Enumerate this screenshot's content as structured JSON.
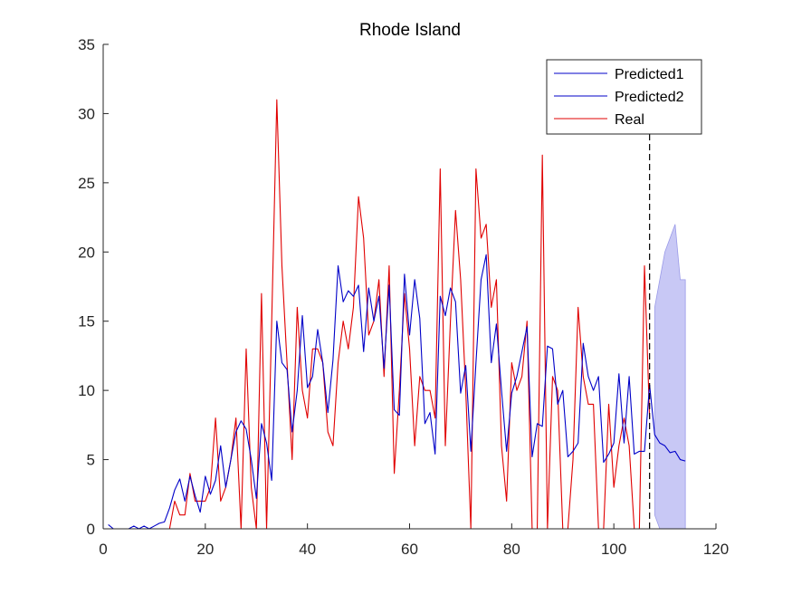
{
  "chart_data": {
    "type": "line",
    "title": "Rhode Island",
    "xlabel": "",
    "ylabel": "",
    "xlim": [
      0,
      120
    ],
    "ylim": [
      0,
      35
    ],
    "xticks": [
      0,
      20,
      40,
      60,
      80,
      100,
      120
    ],
    "yticks": [
      0,
      5,
      10,
      15,
      20,
      25,
      30,
      35
    ],
    "xtick_labels": [
      "0",
      "20",
      "40",
      "60",
      "80",
      "100",
      "120"
    ],
    "ytick_labels": [
      "0",
      "5",
      "10",
      "15",
      "20",
      "25",
      "30",
      "35"
    ],
    "grid": false,
    "legend_position": "top-right",
    "forecast_marker_x": 107,
    "series": [
      {
        "name": "Predicted1",
        "color": "#0000c8",
        "x": [
          1,
          2,
          3,
          4,
          5,
          6,
          7,
          8,
          9,
          10,
          11,
          12,
          13,
          14,
          15,
          16,
          17,
          18,
          19,
          20,
          21,
          22,
          23,
          24,
          25,
          26,
          27,
          28,
          29,
          30,
          31,
          32,
          33,
          34,
          35,
          36,
          37,
          38,
          39,
          40,
          41,
          42,
          43,
          44,
          45,
          46,
          47,
          48,
          49,
          50,
          51,
          52,
          53,
          54,
          55,
          56,
          57,
          58,
          59,
          60,
          61,
          62,
          63,
          64,
          65,
          66,
          67,
          68,
          69,
          70,
          71,
          72,
          73,
          74,
          75,
          76,
          77,
          78,
          79,
          80,
          81,
          82,
          83,
          84,
          85,
          86,
          87,
          88,
          89,
          90,
          91,
          92,
          93,
          94,
          95,
          96,
          97,
          98,
          99,
          100,
          101,
          102,
          103,
          104,
          105,
          106,
          107
        ],
        "values": [
          0.3,
          0,
          0,
          0,
          0,
          0.2,
          0,
          0.2,
          0,
          0.2,
          0.4,
          0.5,
          1.5,
          2.8,
          3.6,
          2,
          3.8,
          2.4,
          1.2,
          3.8,
          2.5,
          3.5,
          6,
          3,
          5,
          7,
          7.8,
          7.2,
          5,
          2.2,
          7.6,
          6.2,
          3.5,
          15,
          12,
          11.5,
          7,
          10,
          15.4,
          10.2,
          11,
          14.4,
          12,
          8.4,
          12.2,
          19,
          16.4,
          17.2,
          16.8,
          17.6,
          12.8,
          17.4,
          15,
          16.8,
          11.6,
          17.6,
          8.6,
          8.2,
          18.4,
          14,
          18,
          15.2,
          7.6,
          8.4,
          5.4,
          16.8,
          15.4,
          17.4,
          16.4,
          9.8,
          11.8,
          5.6,
          12,
          18,
          19.8,
          12,
          14.8,
          10,
          5.6,
          9.8,
          11,
          12.8,
          14.6,
          5.2,
          7.6,
          7.4,
          13.2,
          13,
          9,
          10,
          5.2,
          5.6,
          6.2,
          13.4,
          11,
          10,
          11,
          4.8,
          5.4,
          6.2,
          11.2,
          6.2,
          11,
          5.4,
          5.6,
          5.6,
          10.4
        ]
      },
      {
        "name": "Predicted2",
        "color": "#0000c8",
        "x": [
          107,
          108,
          109,
          110,
          111,
          112,
          113,
          114
        ],
        "values": [
          10.4,
          6.8,
          6.2,
          6,
          5.5,
          5.6,
          5,
          4.9
        ]
      },
      {
        "name": "Real",
        "color": "#e00000",
        "x": [
          1,
          2,
          3,
          4,
          5,
          6,
          7,
          8,
          9,
          10,
          11,
          12,
          13,
          14,
          15,
          16,
          17,
          18,
          19,
          20,
          21,
          22,
          23,
          24,
          25,
          26,
          27,
          28,
          29,
          30,
          31,
          32,
          33,
          34,
          35,
          36,
          37,
          38,
          39,
          40,
          41,
          42,
          43,
          44,
          45,
          46,
          47,
          48,
          49,
          50,
          51,
          52,
          53,
          54,
          55,
          56,
          57,
          58,
          59,
          60,
          61,
          62,
          63,
          64,
          65,
          66,
          67,
          68,
          69,
          70,
          71,
          72,
          73,
          74,
          75,
          76,
          77,
          78,
          79,
          80,
          81,
          82,
          83,
          84,
          85,
          86,
          87,
          88,
          89,
          90,
          91,
          92,
          93,
          94,
          95,
          96,
          97,
          98,
          99,
          100,
          101,
          102,
          103,
          104,
          105,
          106,
          107
        ],
        "values": [
          0,
          0,
          0,
          0,
          0,
          0,
          0,
          0,
          0,
          0,
          0,
          0,
          0,
          2,
          1,
          1,
          4,
          2,
          2,
          2,
          3,
          8,
          2,
          3,
          5,
          8,
          0,
          13,
          3,
          0,
          17,
          0,
          15,
          31,
          19,
          12,
          5,
          16,
          10,
          8,
          13,
          13,
          12,
          7,
          6,
          12,
          15,
          13,
          16,
          24,
          21,
          14,
          15,
          18,
          11,
          19,
          4,
          10,
          17,
          13,
          6,
          11,
          10,
          10,
          8,
          26,
          6,
          15,
          23,
          18,
          10,
          0,
          26,
          21,
          22,
          16,
          18,
          6,
          2,
          12,
          10,
          11,
          15,
          0,
          0,
          27,
          0,
          11,
          10,
          0,
          0,
          5,
          16,
          11,
          9,
          9,
          0,
          0,
          9,
          3,
          6,
          8,
          6,
          0,
          0,
          19,
          8
        ]
      }
    ],
    "confidence_band": {
      "color": "#c8c8f5",
      "x": [
        108,
        109,
        110,
        111,
        112,
        113,
        114
      ],
      "upper": [
        16,
        18,
        20,
        21,
        22,
        18,
        18
      ],
      "lower": [
        1,
        0,
        0,
        0,
        0,
        0,
        0
      ]
    }
  }
}
